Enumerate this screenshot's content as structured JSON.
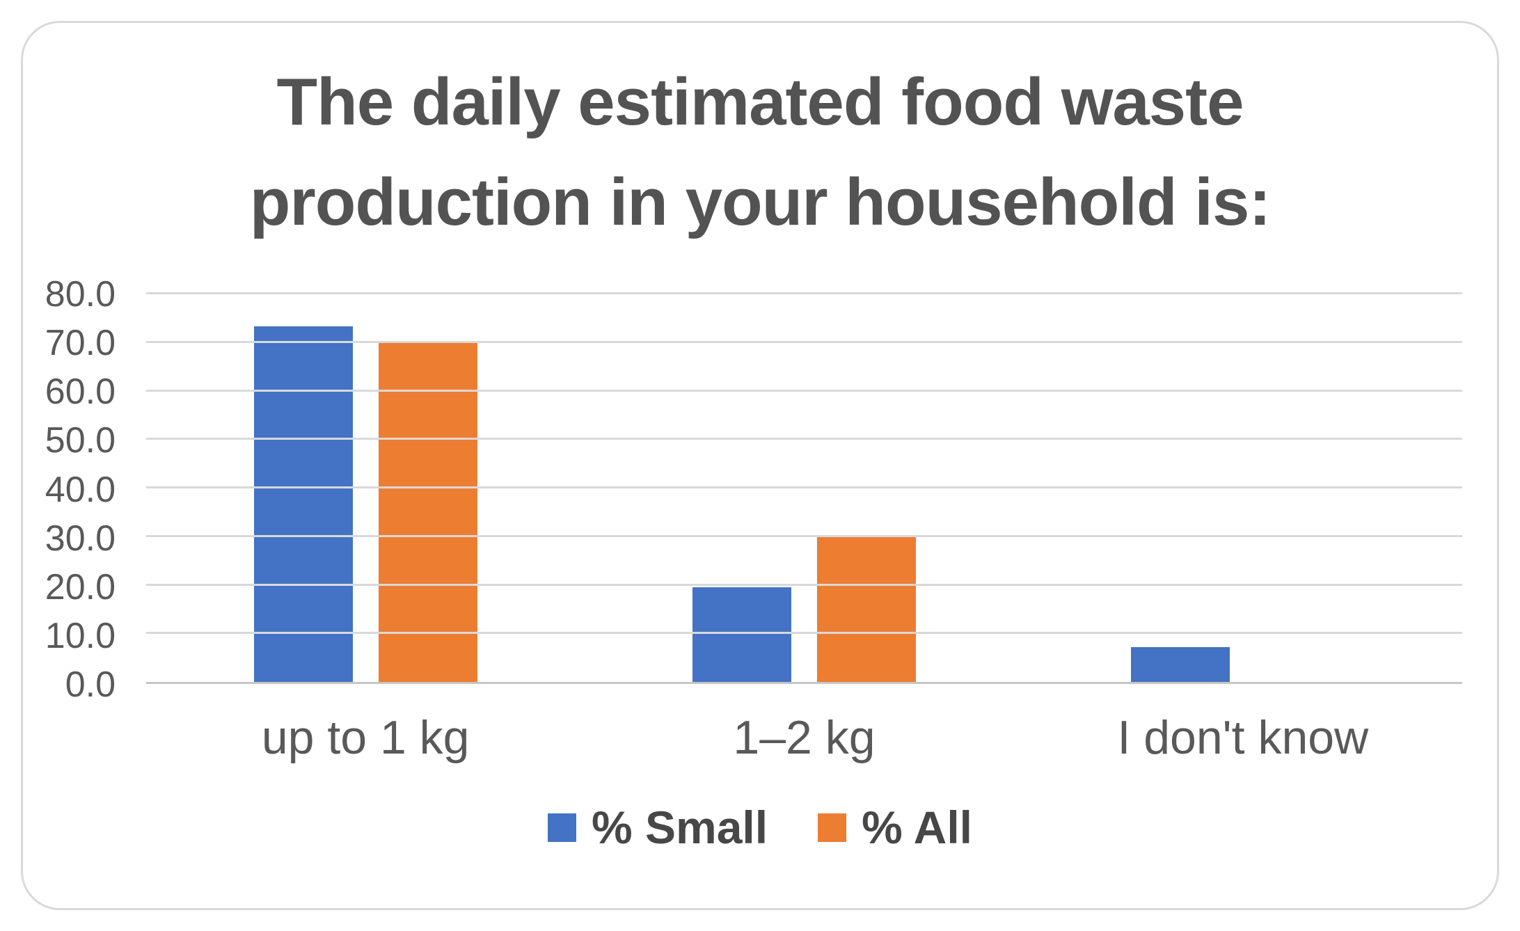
{
  "chart_data": {
    "type": "bar",
    "title": "The daily estimated food waste\nproduction in your household is:",
    "categories": [
      "up to 1 kg",
      "1–2 kg",
      "I don't know"
    ],
    "series": [
      {
        "name": "% Small",
        "color": "#4472C4",
        "values": [
          73.3,
          19.5,
          7.2
        ]
      },
      {
        "name": "% All",
        "color": "#ED7D31",
        "values": [
          70.0,
          30.0,
          0.0
        ]
      }
    ],
    "y_ticks": [
      "0.0",
      "10.0",
      "20.0",
      "30.0",
      "40.0",
      "50.0",
      "60.0",
      "70.0",
      "80.0"
    ],
    "ylim": [
      0,
      80
    ],
    "xlabel": "",
    "ylabel": "",
    "grid": true,
    "legend_position": "bottom"
  },
  "colors": {
    "background": "#FFFFFF",
    "card_border": "#D9D9D9",
    "title_text": "#535353",
    "axis_text": "#595959",
    "legend_text": "#474747",
    "gridline": "#D9D9D9",
    "baseline": "#C6C6C6"
  }
}
